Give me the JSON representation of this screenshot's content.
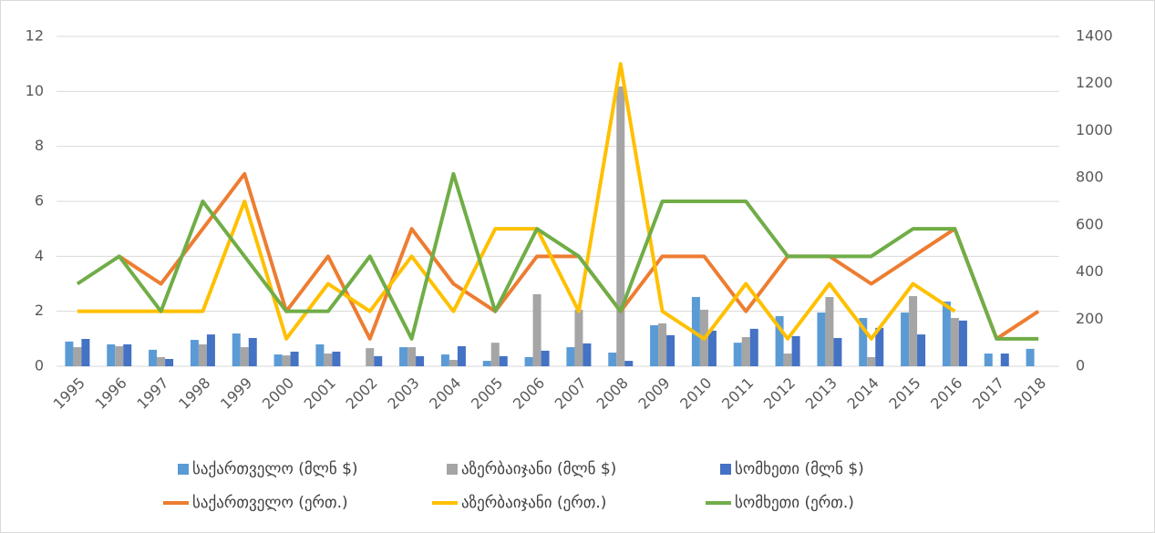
{
  "chart_data": {
    "type": "bar",
    "categories": [
      "1995",
      "1996",
      "1997",
      "1998",
      "1999",
      "2000",
      "2001",
      "2002",
      "2003",
      "2004",
      "2005",
      "2006",
      "2007",
      "2008",
      "2009",
      "2010",
      "2011",
      "2012",
      "2013",
      "2014",
      "2015",
      "2016",
      "2017",
      "2018"
    ],
    "ylim": [
      0,
      12
    ],
    "yticks": [
      0,
      2,
      4,
      6,
      8,
      10,
      12
    ],
    "y2lim": [
      0,
      1400
    ],
    "y2ticks": [
      0,
      200,
      400,
      600,
      800,
      1000,
      1200,
      1400
    ],
    "grid": true,
    "series": [
      {
        "name": "საქართველო (მლნ $)",
        "type": "bar",
        "axis": "y2",
        "color": "#5b9bd5",
        "values": [
          105,
          93,
          70,
          112,
          139,
          50,
          93,
          null,
          81,
          50,
          23,
          39,
          81,
          58,
          174,
          294,
          100,
          213,
          228,
          205,
          228,
          275,
          54,
          74
        ]
      },
      {
        "name": "აზერბაიჯანი (მლნ $)",
        "type": "bar",
        "axis": "y2",
        "color": "#a5a5a5",
        "values": [
          81,
          85,
          39,
          93,
          81,
          46,
          54,
          77,
          81,
          27,
          100,
          306,
          240,
          1188,
          182,
          240,
          124,
          54,
          294,
          39,
          298,
          205,
          null,
          null
        ]
      },
      {
        "name": "სომხეთი (მლნ $)",
        "type": "bar",
        "axis": "y2",
        "color": "#4472c4",
        "values": [
          116,
          93,
          31,
          135,
          120,
          62,
          62,
          43,
          43,
          85,
          43,
          66,
          97,
          23,
          132,
          151,
          159,
          128,
          120,
          163,
          135,
          194,
          54,
          null
        ]
      },
      {
        "name": "საქართველო (ერთ.)",
        "type": "line",
        "axis": "y",
        "color": "#ed7d31",
        "values": [
          null,
          4,
          3,
          5,
          7,
          2,
          4,
          1,
          5,
          3,
          2,
          4,
          4,
          2,
          4,
          4,
          2,
          4,
          4,
          3,
          4,
          5,
          1,
          2
        ]
      },
      {
        "name": "აზერბაიჯანი (ერთ.)",
        "type": "line",
        "axis": "y",
        "color": "#ffc000",
        "values": [
          2,
          2,
          2,
          2,
          6,
          1,
          3,
          2,
          4,
          2,
          5,
          5,
          2,
          11,
          2,
          1,
          3,
          1,
          3,
          1,
          3,
          2,
          null,
          null
        ]
      },
      {
        "name": "სომხეთი (ერთ.)",
        "type": "line",
        "axis": "y",
        "color": "#70ad47",
        "values": [
          3,
          4,
          2,
          6,
          4,
          2,
          2,
          4,
          1,
          7,
          2,
          5,
          4,
          2,
          6,
          6,
          6,
          4,
          4,
          4,
          5,
          5,
          1,
          1
        ]
      }
    ]
  }
}
